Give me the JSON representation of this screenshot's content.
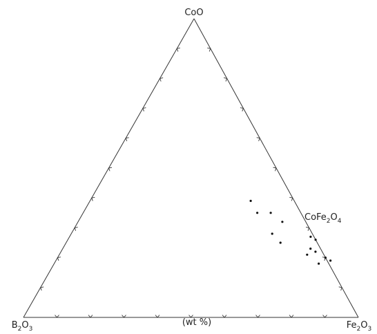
{
  "chart_data": {
    "type": "scatter",
    "subtype": "ternary",
    "vertices": {
      "top": {
        "base": "CoO",
        "parts": [
          [
            "Co",
            ""
          ],
          [
            "O",
            ""
          ]
        ]
      },
      "left": {
        "base": "B2O3",
        "parts": [
          [
            "B",
            "2"
          ],
          [
            "O",
            "3"
          ]
        ]
      },
      "right": {
        "base": "Fe2O3",
        "parts": [
          [
            "Fe",
            "2"
          ],
          [
            "O",
            "3"
          ]
        ]
      }
    },
    "annotation": {
      "base": "CoFe2O4",
      "parts": [
        [
          "Co",
          ""
        ],
        [
          "Fe",
          "2"
        ],
        [
          "O",
          "4"
        ]
      ]
    },
    "unit_label": "(wt %)",
    "tick_step": 0.1,
    "series": [
      {
        "points": [
          {
            "CoO": 0.39,
            "Fe2O3": 0.48
          },
          {
            "CoO": 0.35,
            "Fe2O3": 0.52
          },
          {
            "CoO": 0.35,
            "Fe2O3": 0.56
          },
          {
            "CoO": 0.32,
            "Fe2O3": 0.61
          },
          {
            "CoO": 0.28,
            "Fe2O3": 0.6
          },
          {
            "CoO": 0.25,
            "Fe2O3": 0.64
          },
          {
            "CoO": 0.27,
            "Fe2O3": 0.72
          },
          {
            "CoO": 0.26,
            "Fe2O3": 0.74
          },
          {
            "CoO": 0.23,
            "Fe2O3": 0.74
          },
          {
            "CoO": 0.22,
            "Fe2O3": 0.76
          },
          {
            "CoO": 0.21,
            "Fe2O3": 0.74
          },
          {
            "CoO": 0.18,
            "Fe2O3": 0.79
          },
          {
            "CoO": 0.2,
            "Fe2O3": 0.8
          },
          {
            "CoO": 0.19,
            "Fe2O3": 0.82
          }
        ]
      }
    ]
  }
}
